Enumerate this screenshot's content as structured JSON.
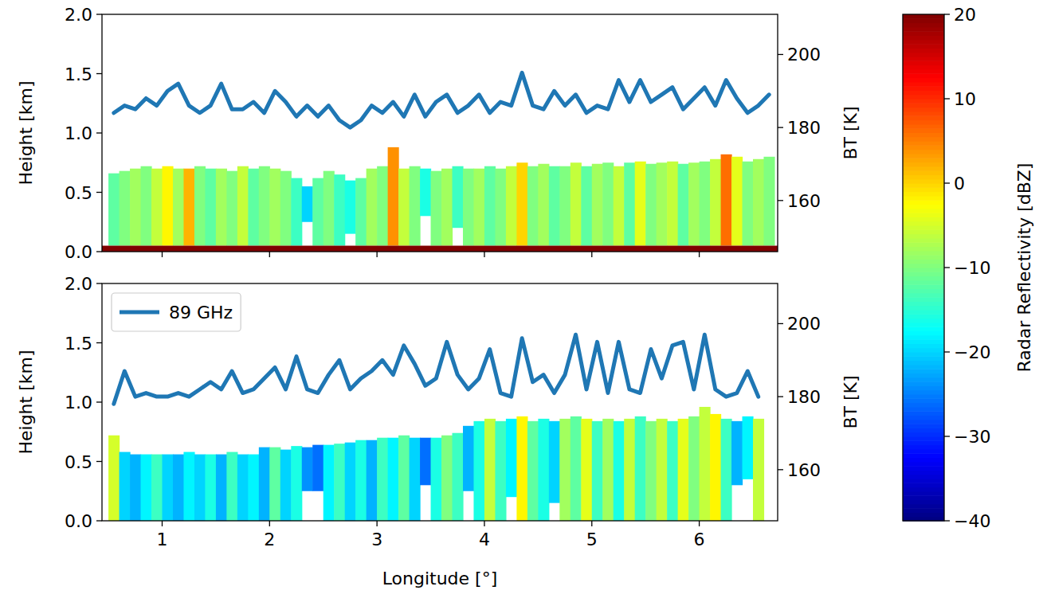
{
  "chart_data": [
    {
      "type": "curtain",
      "ylabel": "Height [km]",
      "y2label": "BT [K]",
      "xlim": [
        0.44,
        6.73
      ],
      "xticks": [
        1,
        2,
        3,
        4,
        5,
        6
      ],
      "ylim": [
        0,
        2
      ],
      "yticks": [
        {
          "value": 0,
          "label": "0.0"
        },
        0.5,
        {
          "value": 1,
          "label": "1.0"
        },
        1.5,
        {
          "value": 2,
          "label": "2.0"
        }
      ],
      "y2lim": [
        146,
        211
      ],
      "y2ticks": [
        160,
        180,
        200
      ],
      "tick_labels": "y",
      "x": [
        0.55,
        0.65,
        0.75,
        0.85,
        0.95,
        1.05,
        1.15,
        1.25,
        1.35,
        1.45,
        1.55,
        1.65,
        1.75,
        1.85,
        1.95,
        2.05,
        2.15,
        2.25,
        2.35,
        2.45,
        2.55,
        2.65,
        2.75,
        2.85,
        2.95,
        3.05,
        3.15,
        3.25,
        3.35,
        3.45,
        3.55,
        3.65,
        3.75,
        3.85,
        3.95,
        4.05,
        4.15,
        4.25,
        4.35,
        4.45,
        4.55,
        4.65,
        4.75,
        4.85,
        4.95,
        5.05,
        5.15,
        5.25,
        5.35,
        5.45,
        5.55,
        5.65,
        5.75,
        5.85,
        5.95,
        6.05,
        6.15,
        6.25,
        6.35,
        6.45,
        6.55,
        6.65
      ],
      "radar": {
        "width": 0.1,
        "top": [
          0.66,
          0.68,
          0.7,
          0.72,
          0.7,
          0.72,
          0.7,
          0.7,
          0.72,
          0.7,
          0.7,
          0.68,
          0.72,
          0.7,
          0.72,
          0.7,
          0.68,
          0.62,
          0.55,
          0.62,
          0.68,
          0.65,
          0.6,
          0.62,
          0.7,
          0.72,
          0.88,
          0.7,
          0.72,
          0.7,
          0.68,
          0.7,
          0.72,
          0.7,
          0.7,
          0.72,
          0.7,
          0.72,
          0.75,
          0.72,
          0.74,
          0.72,
          0.72,
          0.75,
          0.72,
          0.74,
          0.75,
          0.72,
          0.75,
          0.76,
          0.74,
          0.75,
          0.76,
          0.74,
          0.75,
          0.76,
          0.78,
          0.82,
          0.8,
          0.76,
          0.78,
          0.8
        ],
        "base": [
          0.05,
          0.05,
          0.05,
          0.05,
          0.05,
          0.05,
          0.05,
          0.05,
          0.05,
          0.05,
          0.05,
          0.05,
          0.05,
          0.05,
          0.05,
          0.05,
          0.05,
          0.05,
          0.25,
          0.05,
          0.05,
          0.05,
          0.15,
          0.05,
          0.05,
          0.05,
          0.05,
          0.05,
          0.05,
          0.3,
          0.05,
          0.05,
          0.2,
          0.05,
          0.05,
          0.05,
          0.05,
          0.05,
          0.05,
          0.05,
          0.05,
          0.05,
          0.05,
          0.05,
          0.05,
          0.05,
          0.05,
          0.05,
          0.05,
          0.05,
          0.05,
          0.05,
          0.05,
          0.05,
          0.05,
          0.05,
          0.05,
          0.05,
          0.05,
          0.05,
          0.05,
          0.05
        ],
        "reflectivity": [
          -12,
          -10,
          -8,
          -10,
          -6,
          -2,
          -8,
          2,
          -10,
          -12,
          -8,
          -10,
          -6,
          -12,
          -10,
          -8,
          -10,
          -14,
          -20,
          -12,
          -10,
          -14,
          -16,
          -12,
          -8,
          -10,
          4,
          -6,
          -10,
          -16,
          -10,
          -8,
          -14,
          -10,
          -8,
          -12,
          -10,
          -6,
          0,
          -10,
          -8,
          -12,
          -10,
          -6,
          -12,
          -8,
          -10,
          -6,
          -12,
          -4,
          -10,
          -8,
          -6,
          -12,
          -8,
          -10,
          -6,
          6,
          -4,
          -10,
          -8,
          -10
        ]
      },
      "surface_echo": {
        "height": 0.05,
        "reflectivity": 20
      },
      "series": [
        {
          "color": "#1f77b4",
          "axis": "y2",
          "type": "line",
          "values": [
            184,
            186,
            185,
            188,
            186,
            190,
            192,
            186,
            184,
            186,
            192,
            185,
            185,
            187,
            184,
            190,
            187,
            183,
            186,
            183,
            186,
            182,
            180,
            182,
            186,
            184,
            187,
            183,
            189,
            183,
            187,
            189,
            184,
            186,
            189,
            184,
            187,
            186,
            195,
            186,
            185,
            190,
            186,
            189,
            184,
            186,
            185,
            193,
            187,
            193,
            187,
            189,
            191,
            185,
            188,
            191,
            186,
            193,
            188,
            184,
            186,
            189
          ]
        }
      ]
    },
    {
      "type": "curtain",
      "xlabel": "Longitude [°]",
      "ylabel": "Height [km]",
      "y2label": "BT [K]",
      "xlim": [
        0.44,
        6.73
      ],
      "xticks": [
        1,
        2,
        3,
        4,
        5,
        6
      ],
      "ylim": [
        0,
        2
      ],
      "yticks": [
        {
          "value": 0,
          "label": "0.0"
        },
        0.5,
        {
          "value": 1,
          "label": "1.0"
        },
        1.5,
        {
          "value": 2,
          "label": "2.0"
        }
      ],
      "y2lim": [
        146,
        211
      ],
      "y2ticks": [
        160,
        180,
        200
      ],
      "legend": "upper left",
      "x": [
        0.55,
        0.65,
        0.75,
        0.85,
        0.95,
        1.05,
        1.15,
        1.25,
        1.35,
        1.45,
        1.55,
        1.65,
        1.75,
        1.85,
        1.95,
        2.05,
        2.15,
        2.25,
        2.35,
        2.45,
        2.55,
        2.65,
        2.75,
        2.85,
        2.95,
        3.05,
        3.15,
        3.25,
        3.35,
        3.45,
        3.55,
        3.65,
        3.75,
        3.85,
        3.95,
        4.05,
        4.15,
        4.25,
        4.35,
        4.45,
        4.55,
        4.65,
        4.75,
        4.85,
        4.95,
        5.05,
        5.15,
        5.25,
        5.35,
        5.45,
        5.55,
        5.65,
        5.75,
        5.85,
        5.95,
        6.05,
        6.15,
        6.25,
        6.35,
        6.45,
        6.55,
        6.65
      ],
      "radar": {
        "width": 0.1,
        "top": [
          0.72,
          0.58,
          0.56,
          0.56,
          0.56,
          0.56,
          0.56,
          0.58,
          0.56,
          0.56,
          0.56,
          0.58,
          0.56,
          0.56,
          0.62,
          0.62,
          0.6,
          0.63,
          0.62,
          0.64,
          0.64,
          0.65,
          0.66,
          0.68,
          0.68,
          0.7,
          0.7,
          0.72,
          0.7,
          0.7,
          0.7,
          0.72,
          0.74,
          0.8,
          0.84,
          0.86,
          0.84,
          0.86,
          0.88,
          0.84,
          0.86,
          0.84,
          0.86,
          0.88,
          0.86,
          0.84,
          0.86,
          0.84,
          0.86,
          0.88,
          0.84,
          0.86,
          0.84,
          0.86,
          0.88,
          0.96,
          0.9,
          0.86,
          0.84,
          0.88,
          0.86,
          null
        ],
        "base": [
          0,
          0,
          0,
          0,
          0,
          0,
          0,
          0,
          0,
          0,
          0,
          0,
          0,
          0,
          0,
          0,
          0,
          0,
          0.25,
          0.25,
          0,
          0,
          0,
          0,
          0,
          0,
          0,
          0,
          0,
          0.3,
          0,
          0,
          0,
          0.25,
          0,
          0,
          0,
          0.2,
          0,
          0,
          0,
          0.15,
          0,
          0,
          0,
          0,
          0,
          0,
          0,
          0,
          0,
          0,
          0,
          0,
          0,
          0,
          0,
          0,
          0.3,
          0.35,
          0,
          null
        ],
        "reflectivity": [
          -5,
          -20,
          -22,
          -18,
          -14,
          -20,
          -22,
          -18,
          -20,
          -16,
          -22,
          -14,
          -20,
          -18,
          -22,
          -12,
          -20,
          -16,
          -24,
          -26,
          -18,
          -14,
          -20,
          -16,
          -22,
          -14,
          -18,
          -12,
          -20,
          -26,
          -16,
          -10,
          -14,
          -22,
          -16,
          -6,
          -14,
          -18,
          -2,
          -12,
          -16,
          -20,
          -8,
          -12,
          -4,
          -14,
          -8,
          -16,
          -6,
          -14,
          -10,
          -6,
          -14,
          -4,
          -10,
          -6,
          -2,
          -14,
          -22,
          -18,
          -6,
          null
        ]
      },
      "series": [
        {
          "name": "89 GHz",
          "color": "#1f77b4",
          "axis": "y2",
          "type": "line",
          "values": [
            178,
            187,
            180,
            181,
            180,
            180,
            181,
            180,
            182,
            184,
            182,
            187,
            181,
            182,
            185,
            188,
            182,
            191,
            182,
            181,
            186,
            190,
            182,
            185,
            187,
            190,
            186,
            194,
            189,
            183,
            185,
            195,
            186,
            182,
            185,
            193,
            181,
            180,
            196,
            184,
            186,
            181,
            186,
            197,
            182,
            195,
            181,
            195,
            182,
            181,
            193,
            185,
            194,
            195,
            182,
            197,
            182,
            180,
            181,
            187,
            180,
            null
          ]
        }
      ]
    }
  ],
  "colorbar": {
    "label": "Radar Reflectivity [dBZ]",
    "lim": [
      -40,
      20
    ],
    "ticks": [
      {
        "value": -40,
        "label": "−40"
      },
      {
        "value": -30,
        "label": "−30"
      },
      {
        "value": -20,
        "label": "−20"
      },
      {
        "value": -10,
        "label": "−10"
      },
      0,
      10,
      20
    ]
  }
}
